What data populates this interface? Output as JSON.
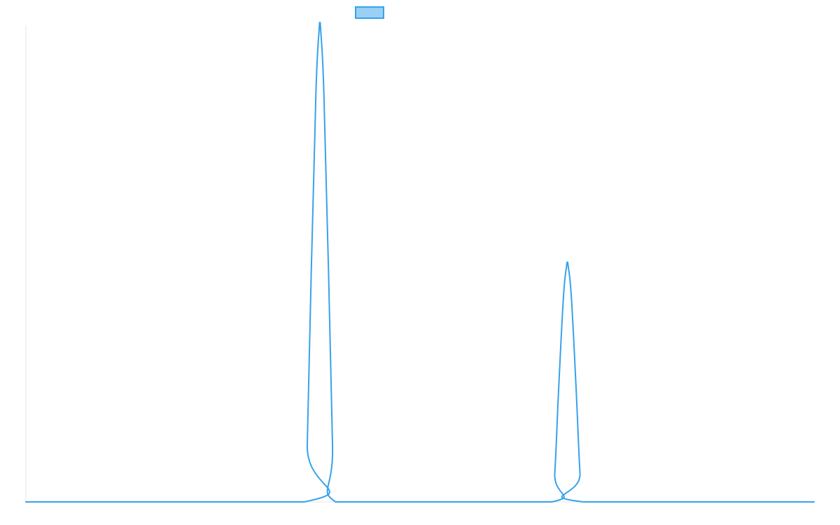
{
  "chart_data": {
    "type": "line",
    "title": "",
    "xlabel": "",
    "ylabel": "",
    "legend": {
      "placement": "top-center",
      "entries": [
        {
          "label": "",
          "swatch_fill": "#9ad0f5",
          "swatch_border": "#36a2eb"
        }
      ]
    },
    "grid": false,
    "x_range": [
      0,
      100
    ],
    "y_range": [
      0,
      1.0
    ],
    "series": [
      {
        "color": "#36a2eb",
        "x": [
          0,
          35.3,
          35.7,
          36.2,
          36.8,
          37.2,
          37.3,
          37.4,
          37.8,
          38.4,
          38.9,
          39.3,
          50,
          66.7,
          67.1,
          67.6,
          68.2,
          68.6,
          68.7,
          68.8,
          69.2,
          69.8,
          70.3,
          70.7,
          100
        ],
        "y": [
          0,
          0,
          0.12,
          0.48,
          0.86,
          0.99,
          1.0,
          0.99,
          0.86,
          0.48,
          0.12,
          0,
          0,
          0,
          0.06,
          0.24,
          0.43,
          0.495,
          0.5,
          0.495,
          0.43,
          0.24,
          0.06,
          0,
          0
        ]
      }
    ]
  }
}
